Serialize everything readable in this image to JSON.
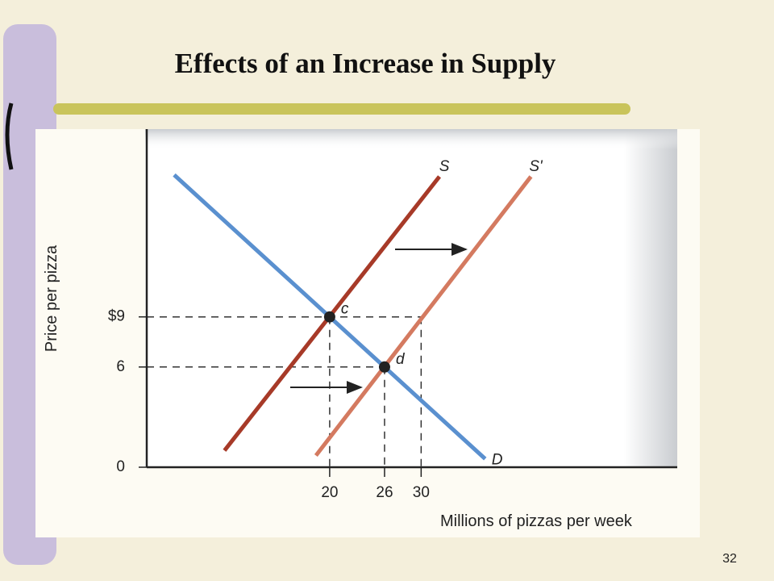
{
  "slide_title": "Effects of an Increase in Supply",
  "page_number": "32",
  "chart_data": {
    "type": "line",
    "x_label": "Millions of pizzas per week",
    "y_label": "Price per pizza",
    "xlim": [
      0,
      58
    ],
    "ylim": [
      0,
      20
    ],
    "xticks": [
      20,
      26,
      30
    ],
    "yticks": [
      0,
      6,
      {
        "value": 9,
        "label": "$9"
      }
    ],
    "series": [
      {
        "name": "S",
        "color": "#a73a28",
        "x": [
          8.5,
          32
        ],
        "values": [
          1,
          17.4
        ]
      },
      {
        "name": "S'",
        "color": "#d47a60",
        "x": [
          18.5,
          42
        ],
        "values": [
          0.7,
          17.4
        ]
      },
      {
        "name": "D",
        "color": "#5a90cf",
        "x": [
          3,
          37
        ],
        "values": [
          17.5,
          0.5
        ]
      }
    ],
    "points": [
      {
        "label": "c",
        "x": 20,
        "y": 9
      },
      {
        "label": "d",
        "x": 26,
        "y": 6
      }
    ],
    "guides": [
      {
        "x": 20,
        "y": 9
      },
      {
        "x": 26,
        "y": 6
      },
      {
        "x": 30,
        "y": 9
      }
    ]
  }
}
